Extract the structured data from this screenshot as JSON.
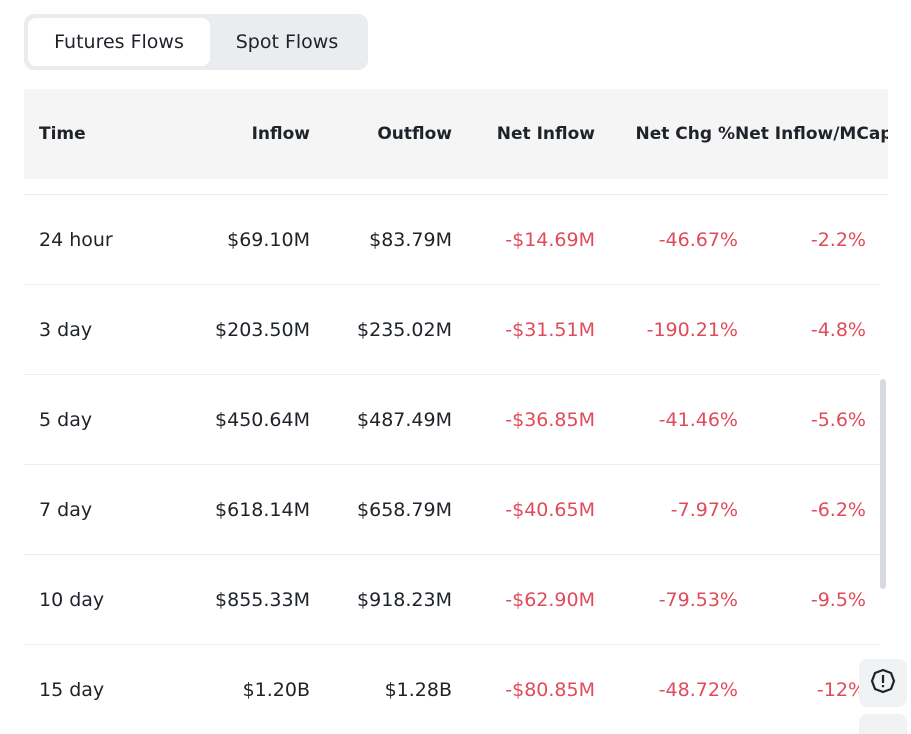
{
  "tabs": [
    {
      "label": "Futures Flows",
      "active": true
    },
    {
      "label": "Spot Flows",
      "active": false
    }
  ],
  "table": {
    "headers": {
      "time": "Time",
      "inflow": "Inflow",
      "outflow": "Outflow",
      "net_inflow": "Net Inflow",
      "net_chg": "Net Chg %",
      "net_inflow_mcap": "Net Inflow/MCap"
    },
    "rows": [
      {
        "time": "24 hour",
        "inflow": "$69.10M",
        "outflow": "$83.79M",
        "net_inflow": "-$14.69M",
        "net_chg": "-46.67%",
        "net_inflow_mcap": "-2.2%"
      },
      {
        "time": "3 day",
        "inflow": "$203.50M",
        "outflow": "$235.02M",
        "net_inflow": "-$31.51M",
        "net_chg": "-190.21%",
        "net_inflow_mcap": "-4.8%"
      },
      {
        "time": "5 day",
        "inflow": "$450.64M",
        "outflow": "$487.49M",
        "net_inflow": "-$36.85M",
        "net_chg": "-41.46%",
        "net_inflow_mcap": "-5.6%"
      },
      {
        "time": "7 day",
        "inflow": "$618.14M",
        "outflow": "$658.79M",
        "net_inflow": "-$40.65M",
        "net_chg": "-7.97%",
        "net_inflow_mcap": "-6.2%"
      },
      {
        "time": "10 day",
        "inflow": "$855.33M",
        "outflow": "$918.23M",
        "net_inflow": "-$62.90M",
        "net_chg": "-79.53%",
        "net_inflow_mcap": "-9.5%"
      },
      {
        "time": "15 day",
        "inflow": "$1.20B",
        "outflow": "$1.28B",
        "net_inflow": "-$80.85M",
        "net_chg": "-48.72%",
        "net_inflow_mcap": "-12%"
      }
    ]
  },
  "colors": {
    "negative": "#e04b5b",
    "header_bg": "#f5f5f5",
    "tab_bg": "#eaecef"
  },
  "icons": {
    "fab": "feedback-alert-icon"
  }
}
